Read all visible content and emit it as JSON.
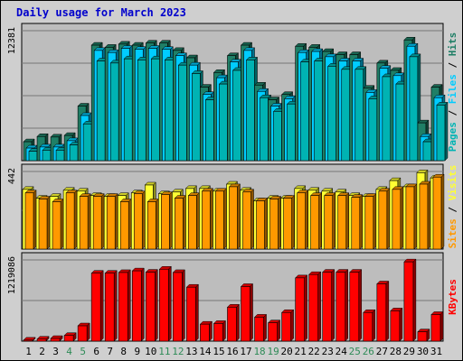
{
  "title": "Daily usage for March 2023",
  "colors": {
    "hits": "#1f7f66",
    "files": "#00ccff",
    "pages": "#00b3b3",
    "visits": "#ffff33",
    "sites": "#ff9900",
    "kbytes": "#ff0000",
    "weekend_day": "#2e8b57",
    "weekday": "#000000",
    "panel_bg": "#bdbdbd"
  },
  "chart_data": [
    {
      "type": "bar",
      "name": "hits-files-pages",
      "side_label": [
        "Pages",
        "Files",
        "Hits"
      ],
      "ymax_label": "12381",
      "ylim": [
        0,
        12381
      ],
      "categories": [
        "1",
        "2",
        "3",
        "4",
        "5",
        "6",
        "7",
        "8",
        "9",
        "10",
        "11",
        "12",
        "13",
        "14",
        "15",
        "16",
        "17",
        "18",
        "19",
        "20",
        "21",
        "22",
        "23",
        "24",
        "25",
        "26",
        "27",
        "28",
        "29",
        "30",
        "31"
      ],
      "series": [
        {
          "name": "Hits",
          "values": [
            1800,
            2300,
            2250,
            2400,
            5200,
            11000,
            10800,
            11100,
            11000,
            11200,
            11200,
            10500,
            9800,
            7000,
            8400,
            10000,
            11000,
            7200,
            5800,
            6300,
            10900,
            10800,
            10400,
            10100,
            10100,
            6900,
            9300,
            8600,
            11500,
            3600,
            7000
          ]
        },
        {
          "name": "Files",
          "values": [
            1200,
            1300,
            1300,
            1900,
            4300,
            10500,
            10300,
            10700,
            10600,
            10700,
            10600,
            10000,
            9100,
            6300,
            7900,
            9400,
            10500,
            6600,
            5200,
            5900,
            10300,
            10400,
            9900,
            9500,
            9500,
            6500,
            8800,
            8100,
            10900,
            2300,
            6000
          ]
        },
        {
          "name": "Pages",
          "values": [
            900,
            1000,
            1000,
            1500,
            3500,
            9500,
            9300,
            9700,
            9600,
            9700,
            9600,
            9100,
            8300,
            5800,
            7300,
            8600,
            9600,
            6000,
            4700,
            5400,
            9400,
            9500,
            9000,
            8700,
            8700,
            5900,
            8000,
            7300,
            9900,
            1800,
            5300
          ]
        }
      ]
    },
    {
      "type": "bar",
      "name": "visits-sites",
      "side_label": [
        "Sites",
        "Visits"
      ],
      "ymax_label": "442",
      "ylim": [
        0,
        442
      ],
      "categories": [
        "1",
        "2",
        "3",
        "4",
        "5",
        "6",
        "7",
        "8",
        "9",
        "10",
        "11",
        "12",
        "13",
        "14",
        "15",
        "16",
        "17",
        "18",
        "19",
        "20",
        "21",
        "22",
        "23",
        "24",
        "25",
        "26",
        "27",
        "28",
        "29",
        "30",
        "31"
      ],
      "series": [
        {
          "name": "Visits",
          "values": [
            340,
            290,
            300,
            335,
            330,
            305,
            300,
            305,
            320,
            365,
            315,
            325,
            345,
            345,
            330,
            370,
            335,
            275,
            290,
            290,
            345,
            335,
            330,
            325,
            305,
            300,
            340,
            390,
            355,
            435,
            405
          ]
        },
        {
          "name": "Sites",
          "values": [
            320,
            285,
            270,
            320,
            300,
            300,
            300,
            270,
            315,
            270,
            310,
            290,
            305,
            330,
            330,
            355,
            325,
            275,
            285,
            290,
            320,
            305,
            305,
            305,
            295,
            300,
            330,
            340,
            355,
            370,
            410
          ]
        }
      ]
    },
    {
      "type": "bar",
      "name": "kbytes",
      "side_label": [
        "KBytes"
      ],
      "ymax_label": "1219086",
      "ylim": [
        0,
        1219086
      ],
      "categories": [
        "1",
        "2",
        "3",
        "4",
        "5",
        "6",
        "7",
        "8",
        "9",
        "10",
        "11",
        "12",
        "13",
        "14",
        "15",
        "16",
        "17",
        "18",
        "19",
        "20",
        "21",
        "22",
        "23",
        "24",
        "25",
        "26",
        "27",
        "28",
        "29",
        "30",
        "31"
      ],
      "series": [
        {
          "name": "KBytes",
          "values": [
            15000,
            30000,
            40000,
            85000,
            230000,
            1020000,
            1020000,
            1030000,
            1055000,
            1035000,
            1080000,
            1030000,
            810000,
            255000,
            265000,
            510000,
            820000,
            360000,
            275000,
            430000,
            950000,
            1000000,
            1035000,
            1035000,
            1035000,
            430000,
            860000,
            455000,
            1190000,
            140000,
            400000
          ]
        }
      ]
    }
  ],
  "weekend_days": [
    4,
    5,
    11,
    12,
    18,
    19,
    25,
    26
  ]
}
